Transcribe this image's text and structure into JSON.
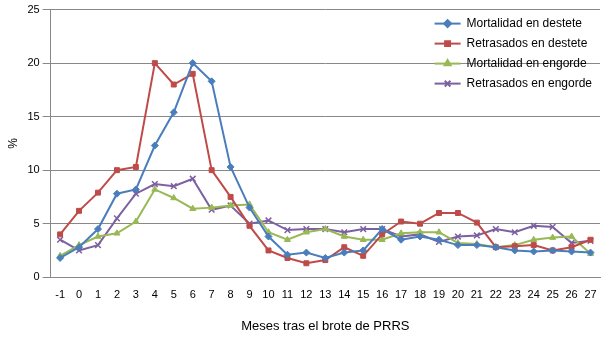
{
  "chart_data": {
    "type": "line",
    "x_label": "Meses tras el brote de PRRS",
    "y_label": "%",
    "categories": [
      "-1",
      "0",
      "1",
      "2",
      "3",
      "4",
      "5",
      "6",
      "7",
      "8",
      "9",
      "10",
      "11",
      "12",
      "13",
      "14",
      "15",
      "16",
      "17",
      "18",
      "19",
      "20",
      "21",
      "22",
      "23",
      "24",
      "25",
      "26",
      "27"
    ],
    "series": [
      {
        "name": "Mortalidad en destete",
        "color": "#4a7ebb",
        "marker": "diamond",
        "values": [
          1.8,
          2.8,
          4.5,
          7.8,
          8.2,
          12.3,
          15.4,
          20,
          18.3,
          10.3,
          6.5,
          3.8,
          2.1,
          2.3,
          1.8,
          2.3,
          2.5,
          4.5,
          3.5,
          3.8,
          3.5,
          3.0,
          3.0,
          2.8,
          2.5,
          2.4,
          2.5,
          2.4,
          2.3
        ]
      },
      {
        "name": "Retrasados en destete",
        "color": "#be4b48",
        "marker": "square",
        "values": [
          4.0,
          6.2,
          7.9,
          10,
          10.3,
          20,
          18,
          19,
          10,
          7.5,
          4.8,
          2.5,
          1.8,
          1.3,
          1.6,
          2.8,
          2.0,
          4.0,
          5.2,
          5.0,
          6.0,
          6.0,
          5.1,
          2.8,
          2.9,
          3.0,
          2.5,
          2.8,
          3.5
        ]
      },
      {
        "name": "Mortalidad en engorde",
        "color": "#98b954",
        "marker": "triangle",
        "values": [
          2.0,
          3.0,
          3.8,
          4.1,
          5.2,
          8.2,
          7.4,
          6.4,
          6.5,
          6.7,
          6.8,
          4.2,
          3.5,
          4.2,
          4.5,
          3.8,
          3.5,
          3.5,
          4.1,
          4.2,
          4.2,
          3.2,
          3.1,
          2.8,
          3.0,
          3.5,
          3.7,
          3.8,
          2.2
        ]
      },
      {
        "name": "Retrasados en engorde",
        "color": "#7d60a0",
        "marker": "x",
        "values": [
          3.5,
          2.5,
          3.0,
          5.5,
          7.8,
          8.7,
          8.5,
          9.2,
          6.3,
          6.7,
          5.0,
          5.3,
          4.4,
          4.5,
          4.5,
          4.2,
          4.5,
          4.5,
          3.8,
          4.0,
          3.3,
          3.8,
          3.9,
          4.5,
          4.2,
          4.8,
          4.7,
          3.2,
          3.4
        ]
      }
    ],
    "ylim": [
      0,
      25
    ],
    "yticks": [
      0,
      5,
      10,
      15,
      20,
      25
    ],
    "grid": true,
    "legend": "upper right"
  }
}
